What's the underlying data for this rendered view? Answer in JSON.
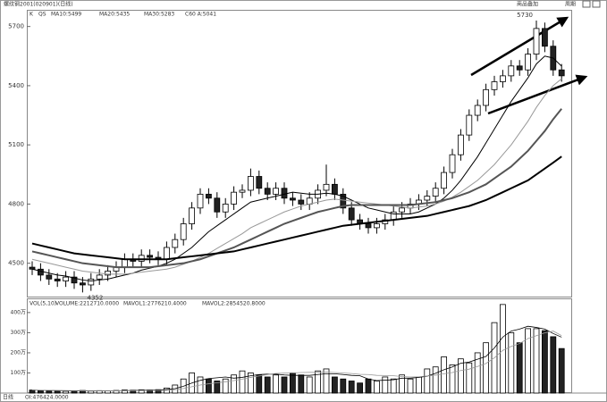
{
  "chart_data": {
    "type": "candlestick",
    "title": "螺纹钢2001(020901)(日线)",
    "toolbar": [
      "商品叠加",
      "周期"
    ],
    "legend_prefix": [
      "K",
      "QS"
    ],
    "open": [
      4480,
      4470,
      4440,
      4420,
      4410,
      4430,
      4400,
      4390,
      4420,
      4440,
      4460,
      4480,
      4520,
      4510,
      4540,
      4530,
      4520,
      4580,
      4620,
      4700,
      4780,
      4850,
      4830,
      4760,
      4800,
      4860,
      4870,
      4940,
      4880,
      4850,
      4880,
      4830,
      4820,
      4800,
      4830,
      4870,
      4900,
      4850,
      4780,
      4720,
      4700,
      4680,
      4700,
      4720,
      4760,
      4780,
      4800,
      4820,
      4840,
      4880,
      4960,
      5050,
      5150,
      5250,
      5300,
      5380,
      5420,
      5450,
      5500,
      5480,
      5560,
      5690,
      5600,
      5480
    ],
    "high": [
      4510,
      4500,
      4470,
      4450,
      4460,
      4460,
      4430,
      4450,
      4470,
      4490,
      4510,
      4550,
      4550,
      4570,
      4570,
      4560,
      4610,
      4650,
      4730,
      4810,
      4880,
      4880,
      4860,
      4830,
      4890,
      4900,
      4980,
      4970,
      4910,
      4910,
      4910,
      4860,
      4850,
      4860,
      4900,
      5000,
      4930,
      4880,
      4810,
      4750,
      4730,
      4730,
      4750,
      4790,
      4810,
      4830,
      4850,
      4870,
      4910,
      4990,
      5080,
      5180,
      5280,
      5330,
      5410,
      5450,
      5480,
      5530,
      5530,
      5590,
      5730,
      5720,
      5630,
      5510
    ],
    "low": [
      4440,
      4410,
      4390,
      4380,
      4380,
      4370,
      4352,
      4360,
      4390,
      4410,
      4430,
      4450,
      4480,
      4480,
      4500,
      4490,
      4490,
      4550,
      4590,
      4670,
      4750,
      4800,
      4730,
      4730,
      4770,
      4830,
      4840,
      4850,
      4820,
      4820,
      4800,
      4790,
      4770,
      4770,
      4800,
      4840,
      4820,
      4750,
      4690,
      4670,
      4650,
      4650,
      4670,
      4690,
      4730,
      4750,
      4770,
      4790,
      4810,
      4850,
      4930,
      5020,
      5120,
      5220,
      5270,
      5350,
      5390,
      5420,
      5450,
      5450,
      5530,
      5570,
      5450,
      5420
    ],
    "close": [
      4470,
      4440,
      4420,
      4410,
      4430,
      4400,
      4390,
      4420,
      4440,
      4460,
      4480,
      4520,
      4510,
      4540,
      4530,
      4520,
      4580,
      4620,
      4700,
      4780,
      4850,
      4830,
      4760,
      4800,
      4860,
      4870,
      4940,
      4880,
      4850,
      4880,
      4830,
      4820,
      4800,
      4830,
      4870,
      4900,
      4850,
      4780,
      4720,
      4700,
      4680,
      4700,
      4720,
      4760,
      4780,
      4800,
      4820,
      4840,
      4880,
      4960,
      5050,
      5150,
      5250,
      5300,
      5380,
      5420,
      5450,
      5500,
      5480,
      5560,
      5690,
      5600,
      5480,
      5450
    ],
    "high_label_index": 60,
    "low_label_index": 6,
    "series": [
      {
        "name": "MA10:5499",
        "color": "#000000",
        "width": 1,
        "values": [
          4470,
          4460,
          4450,
          4440,
          4435,
          4425,
          4415,
          4410,
          4415,
          4420,
          4430,
          4440,
          4450,
          4465,
          4475,
          4485,
          4500,
          4520,
          4550,
          4580,
          4620,
          4660,
          4690,
          4720,
          4750,
          4780,
          4810,
          4820,
          4830,
          4840,
          4850,
          4860,
          4855,
          4850,
          4850,
          4855,
          4850,
          4840,
          4820,
          4800,
          4780,
          4770,
          4760,
          4750,
          4750,
          4750,
          4760,
          4780,
          4800,
          4830,
          4870,
          4920,
          4980,
          5040,
          5110,
          5180,
          5250,
          5320,
          5380,
          5440,
          5510,
          5550,
          5540,
          5499
        ]
      },
      {
        "name": "MA20:5435",
        "color": "#999999",
        "width": 1,
        "values": [
          4520,
          4510,
          4500,
          4490,
          4480,
          4470,
          4460,
          4455,
          4450,
          4445,
          4445,
          4445,
          4450,
          4455,
          4460,
          4465,
          4470,
          4480,
          4495,
          4510,
          4530,
          4550,
          4575,
          4600,
          4625,
          4650,
          4680,
          4700,
          4720,
          4740,
          4760,
          4775,
          4790,
          4800,
          4810,
          4820,
          4825,
          4820,
          4815,
          4810,
          4805,
          4800,
          4795,
          4790,
          4785,
          4780,
          4785,
          4790,
          4800,
          4815,
          4835,
          4860,
          4890,
          4920,
          4960,
          5000,
          5050,
          5100,
          5160,
          5220,
          5290,
          5350,
          5400,
          5435
        ]
      },
      {
        "name": "MA30:5283",
        "color": "#555555",
        "width": 2,
        "values": [
          4560,
          4550,
          4540,
          4530,
          4520,
          4510,
          4500,
          4495,
          4490,
          4485,
          4480,
          4480,
          4480,
          4480,
          4480,
          4485,
          4490,
          4495,
          4500,
          4510,
          4520,
          4535,
          4550,
          4565,
          4580,
          4600,
          4620,
          4640,
          4660,
          4680,
          4700,
          4715,
          4730,
          4745,
          4760,
          4770,
          4780,
          4790,
          4795,
          4795,
          4795,
          4795,
          4795,
          4795,
          4795,
          4795,
          4800,
          4805,
          4810,
          4820,
          4830,
          4845,
          4860,
          4880,
          4900,
          4930,
          4960,
          4990,
          5030,
          5070,
          5120,
          5170,
          5230,
          5283
        ]
      },
      {
        "name": "C60 A:5041",
        "color": "#000000",
        "width": 2,
        "values": [
          4600,
          4590,
          4580,
          4570,
          4560,
          4550,
          4545,
          4540,
          4535,
          4530,
          4525,
          4520,
          4520,
          4520,
          4520,
          4520,
          4520,
          4525,
          4530,
          4535,
          4540,
          4545,
          4550,
          4555,
          4560,
          4570,
          4580,
          4590,
          4600,
          4610,
          4620,
          4630,
          4640,
          4650,
          4660,
          4670,
          4680,
          4690,
          4695,
          4700,
          4705,
          4710,
          4715,
          4720,
          4725,
          4730,
          4735,
          4740,
          4750,
          4760,
          4770,
          4780,
          4790,
          4805,
          4820,
          4840,
          4860,
          4880,
          4900,
          4920,
          4950,
          4980,
          5010,
          5041
        ]
      }
    ],
    "ylim": [
      4340,
      5780
    ],
    "yticks": [
      4500,
      4800,
      5100,
      5400,
      5700
    ],
    "volume_title": "VOL(5,10)",
    "volume_legend": [
      "VOLUME:2212710.0000",
      "MAVOL1:2776210.4000",
      "MAVOL2:2854520.8000"
    ],
    "volume": [
      150000,
      120000,
      110000,
      100000,
      90000,
      110000,
      130000,
      100000,
      120000,
      110000,
      130000,
      150000,
      140000,
      160000,
      150000,
      170000,
      250000,
      400000,
      700000,
      1000000,
      800000,
      700000,
      600000,
      700000,
      900000,
      1100000,
      1000000,
      900000,
      800000,
      900000,
      800000,
      1000000,
      900000,
      800000,
      1100000,
      1200000,
      800000,
      700000,
      600000,
      500000,
      700000,
      600000,
      800000,
      700000,
      900000,
      700000,
      800000,
      1200000,
      1300000,
      1800000,
      1400000,
      1700000,
      1500000,
      2000000,
      2500000,
      3500000,
      4400000,
      3000000,
      2500000,
      3200000,
      3200000,
      3100000,
      2800000,
      2212710
    ],
    "volume_series": [
      {
        "color": "#000000",
        "values": [
          150000,
          140000,
          130000,
          120000,
          114000,
          106000,
          108000,
          106000,
          112000,
          114000,
          114000,
          118000,
          130000,
          138000,
          146000,
          154000,
          174000,
          220000,
          340000,
          500000,
          630000,
          720000,
          760000,
          800000,
          740000,
          780000,
          860000,
          920000,
          940000,
          940000,
          900000,
          880000,
          880000,
          880000,
          920000,
          960000,
          960000,
          920000,
          880000,
          860000,
          700000,
          620000,
          640000,
          660000,
          740000,
          740000,
          780000,
          840000,
          980000,
          1160000,
          1300000,
          1480000,
          1540000,
          1680000,
          1820000,
          2240000,
          2780000,
          3080000,
          3180000,
          3320000,
          3260000,
          3180000,
          2960000,
          2776210.4
        ]
      },
      {
        "color": "#999999",
        "values": [
          150000,
          145000,
          138000,
          130000,
          124000,
          122000,
          120000,
          118000,
          117000,
          116000,
          114000,
          116000,
          118000,
          122000,
          126000,
          130000,
          142000,
          170000,
          228000,
          316000,
          400000,
          464000,
          510000,
          564000,
          620000,
          694000,
          780000,
          852000,
          918000,
          976000,
          990000,
          1000000,
          1020000,
          1030000,
          1030000,
          1040000,
          1020000,
          1000000,
          970000,
          930000,
          920000,
          880000,
          870000,
          860000,
          820000,
          800000,
          810000,
          850000,
          890000,
          960000,
          1020000,
          1120000,
          1190000,
          1320000,
          1470000,
          1750000,
          2120000,
          2320000,
          2460000,
          2710000,
          2850000,
          2990000,
          3080000,
          2854520.8
        ]
      }
    ],
    "volume_ylim": [
      0,
      4660000
    ],
    "volume_yticks": [
      {
        "value": 1000000,
        "label": "100万"
      },
      {
        "value": 2000000,
        "label": "200万"
      },
      {
        "value": 3000000,
        "label": "300万"
      },
      {
        "value": 4000000,
        "label": "400万"
      }
    ],
    "footer": [
      "日线",
      "OI:476424.0000"
    ]
  }
}
